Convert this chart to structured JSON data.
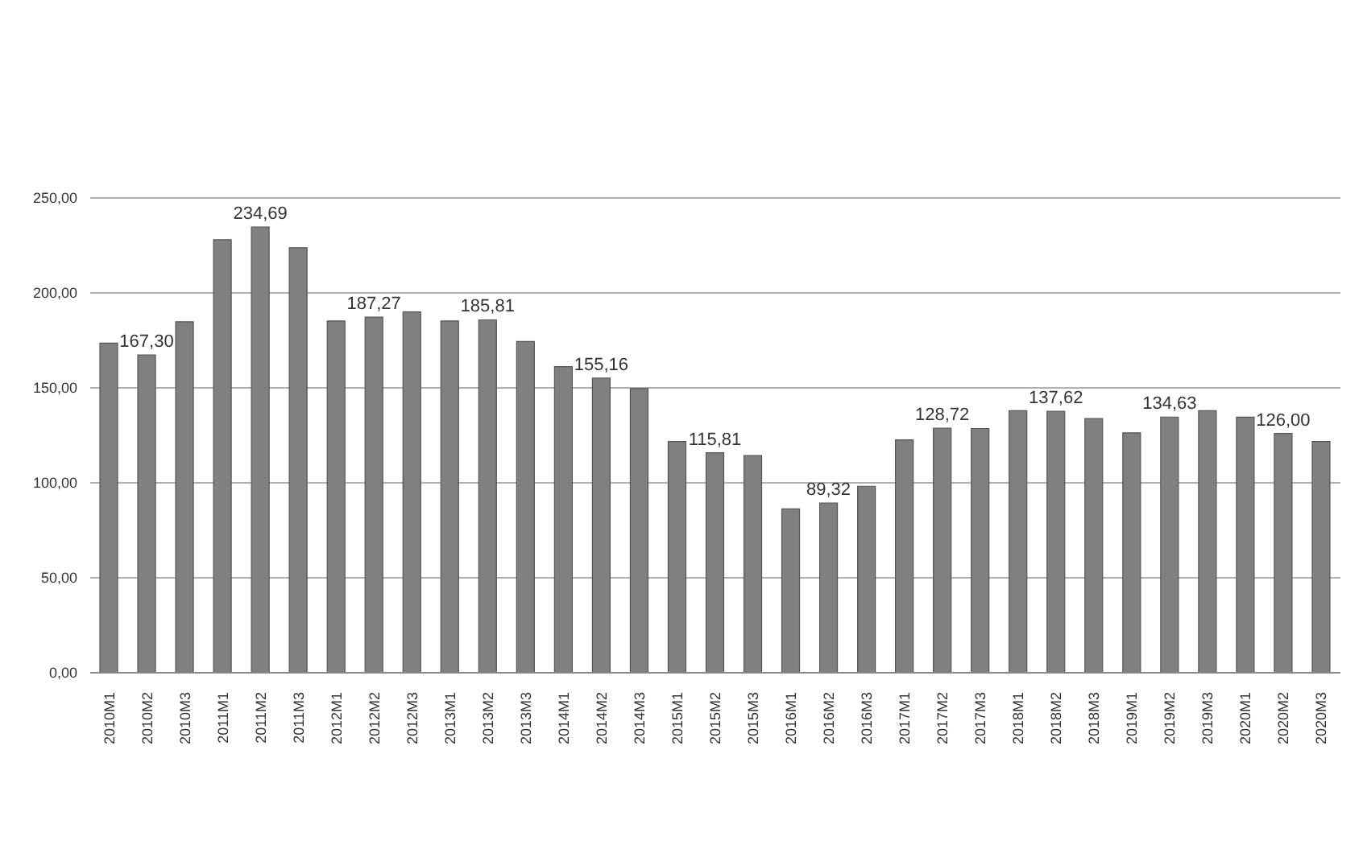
{
  "chart_data": {
    "type": "bar",
    "categories": [
      "2010M1",
      "2010M2",
      "2010M3",
      "2011M1",
      "2011M2",
      "2011M3",
      "2012M1",
      "2012M2",
      "2012M3",
      "2013M1",
      "2013M2",
      "2013M3",
      "2014M1",
      "2014M2",
      "2014M3",
      "2015M1",
      "2015M2",
      "2015M3",
      "2016M1",
      "2016M2",
      "2016M3",
      "2017M1",
      "2017M2",
      "2017M3",
      "2018M1",
      "2018M2",
      "2018M3",
      "2019M1",
      "2019M2",
      "2019M3",
      "2020M1",
      "2020M2",
      "2020M3"
    ],
    "values": [
      173.6,
      167.3,
      184.8,
      228,
      234.69,
      223.8,
      185.2,
      187.27,
      190,
      185.2,
      185.81,
      174.4,
      161.2,
      155.16,
      149.6,
      121.8,
      115.81,
      114.4,
      86.3,
      89.32,
      98.2,
      122.6,
      128.72,
      128.6,
      138,
      137.62,
      133.9,
      126.3,
      134.63,
      138,
      134.6,
      126,
      121.8
    ],
    "value_labels": [
      null,
      "167,30",
      null,
      null,
      "234,69",
      null,
      null,
      "187,27",
      null,
      null,
      "185,81",
      null,
      null,
      "155,16",
      null,
      null,
      "115,81",
      null,
      null,
      "89,32",
      null,
      null,
      "128,72",
      null,
      null,
      "137,62",
      null,
      null,
      "134,63",
      null,
      null,
      "126,00",
      null
    ],
    "color": "#808080",
    "ylim": [
      0,
      250
    ],
    "yticks": [
      {
        "value": 0,
        "label": "0,00"
      },
      {
        "value": 50,
        "label": "50,00"
      },
      {
        "value": 100,
        "label": "100,00"
      },
      {
        "value": 150,
        "label": "150,00"
      },
      {
        "value": 200,
        "label": "200,00"
      },
      {
        "value": 250,
        "label": "250,00"
      }
    ],
    "grid": "y"
  }
}
